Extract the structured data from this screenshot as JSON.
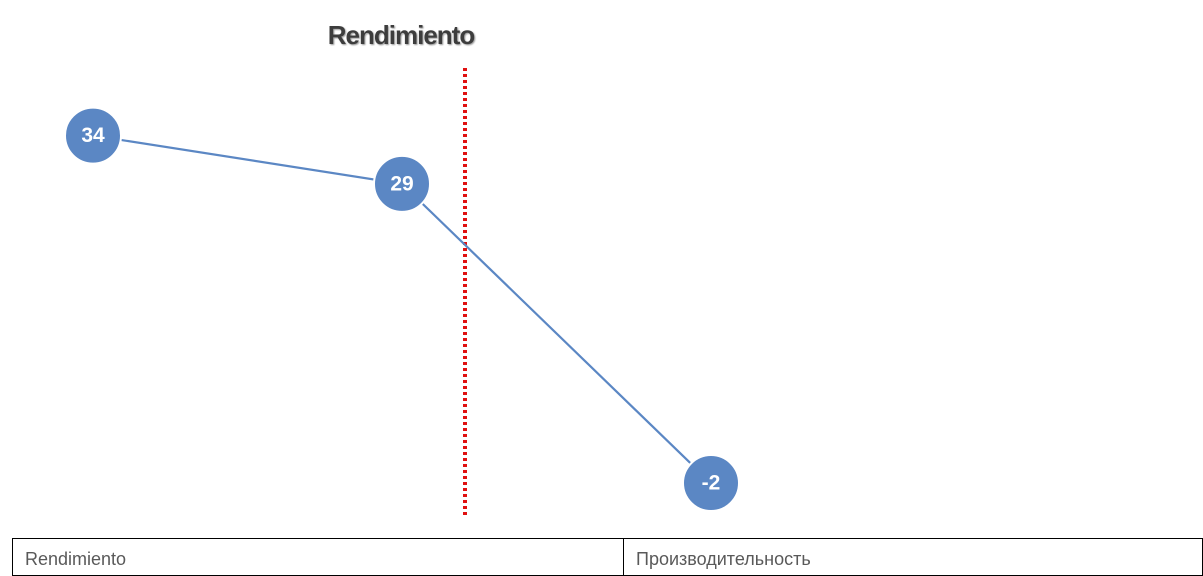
{
  "chart_data": {
    "type": "line",
    "title": "Rendimiento",
    "categories": [
      null,
      null,
      null
    ],
    "values": [
      34,
      29,
      -2
    ],
    "color": "#5b87c4",
    "ylim": [
      -5,
      38
    ]
  },
  "table": {
    "rows": [
      [
        "Rendimiento",
        "Производительность"
      ]
    ]
  }
}
